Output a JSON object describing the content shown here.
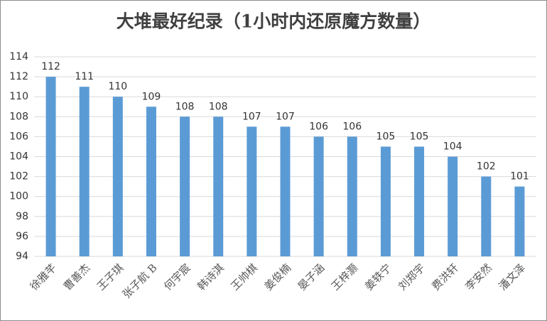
{
  "chart_data": {
    "type": "bar",
    "title": "大堆最好纪录（1小时内还原魔方数量）",
    "categories": [
      "徐雅芊",
      "曹善杰",
      "王子琪",
      "张子航 B",
      "何宇宸",
      "韩诗淇",
      "王帅棋",
      "姜俊楠",
      "晏子涵",
      "王梓灏",
      "姜轶宁",
      "刘郑宇",
      "费洪轩",
      "李安然",
      "潘文泽"
    ],
    "values": [
      112,
      111,
      110,
      109,
      108,
      108,
      107,
      107,
      106,
      106,
      105,
      105,
      104,
      102,
      101
    ],
    "color": "#5b9bd5",
    "ylim": [
      94,
      114
    ],
    "yticks": [
      94,
      96,
      98,
      100,
      102,
      104,
      106,
      108,
      110,
      112,
      114
    ],
    "grid": true,
    "data_labels": true
  }
}
